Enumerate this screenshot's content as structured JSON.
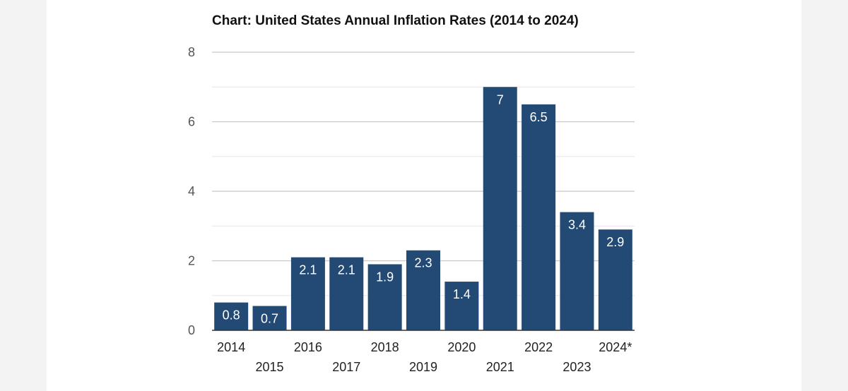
{
  "colors": {
    "bar": "#234a75",
    "major_grid": "#c8c8c8",
    "minor_grid": "#e6e6e6",
    "baseline": "#333333",
    "page_background": "#f3f3f3",
    "panel_background": "#ffffff"
  },
  "chart_data": {
    "type": "bar",
    "title": "Chart: United States Annual Inflation Rates (2014 to 2024)",
    "xlabel": "",
    "ylabel": "",
    "categories": [
      "2014",
      "2015",
      "2016",
      "2017",
      "2018",
      "2019",
      "2020",
      "2021",
      "2022",
      "2023",
      "2024*"
    ],
    "values": [
      0.8,
      0.7,
      2.1,
      2.1,
      1.9,
      2.3,
      1.4,
      7,
      6.5,
      3.4,
      2.9
    ],
    "data_labels": [
      "0.8",
      "0.7",
      "2.1",
      "2.1",
      "1.9",
      "2.3",
      "1.4",
      "7",
      "6.5",
      "3.4",
      "2.9"
    ],
    "ylim": [
      0,
      8
    ],
    "y_ticks": [
      0,
      2,
      4,
      6,
      8
    ],
    "y_tick_labels": [
      "0",
      "2",
      "4",
      "6",
      "8"
    ],
    "minor_gridlines": [
      1,
      3,
      5,
      7
    ],
    "grid": true,
    "legend": "none"
  }
}
